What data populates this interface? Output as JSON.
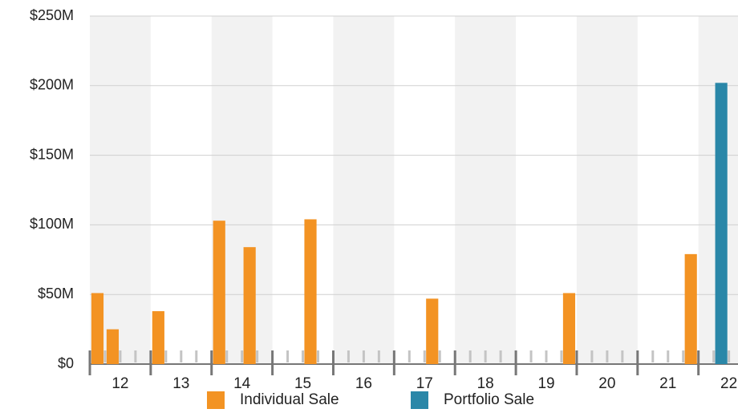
{
  "chart_data": {
    "type": "bar",
    "xlim": [
      12,
      22.65
    ],
    "xticks": [
      12,
      13,
      14,
      15,
      16,
      17,
      18,
      19,
      20,
      21,
      22
    ],
    "ylim": [
      0,
      250
    ],
    "yticks": [
      {
        "value": 0,
        "label": "$0"
      },
      {
        "value": 50,
        "label": "$50M"
      },
      {
        "value": 100,
        "label": "$100M"
      },
      {
        "value": 150,
        "label": "$150M"
      },
      {
        "value": 200,
        "label": "$200M"
      },
      {
        "value": 250,
        "label": "$250M"
      }
    ],
    "grid": true,
    "legend": "bottom",
    "series": [
      {
        "name": "Individual Sale",
        "color": "#f39323",
        "x": [
          12.125,
          12.375,
          13.125,
          14.125,
          14.625,
          15.625,
          17.625,
          19.875,
          21.875
        ],
        "values": [
          51,
          25,
          38,
          103,
          84,
          104,
          47,
          51,
          79
        ]
      },
      {
        "name": "Portfolio Sale",
        "color": "#2a87a8",
        "x": [
          22.375
        ],
        "values": [
          202
        ]
      }
    ]
  }
}
